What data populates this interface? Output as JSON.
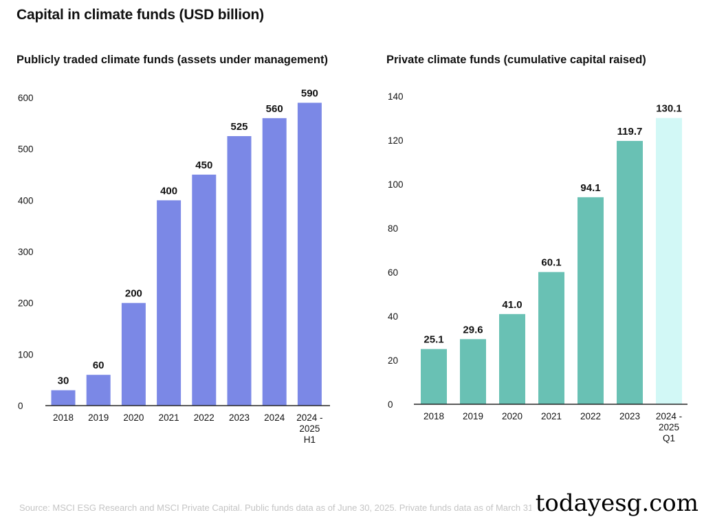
{
  "title": "Capital in climate funds (USD billion)",
  "source": "Source: MSCI ESG Research and MSCI Private Capital. Public funds data as of June 30, 2025. Private funds data as of March 31, 2025.",
  "watermark": "todayesg.com",
  "chart_data": [
    {
      "type": "bar",
      "title": "Publicly traded climate funds (assets under management)",
      "categories": [
        "2018",
        "2019",
        "2020",
        "2021",
        "2022",
        "2023",
        "2024",
        "2024 - 2025 H1"
      ],
      "category_lines": [
        [
          "2018"
        ],
        [
          "2019"
        ],
        [
          "2020"
        ],
        [
          "2021"
        ],
        [
          "2022"
        ],
        [
          "2023"
        ],
        [
          "2024"
        ],
        [
          "2024 -",
          "2025",
          "H1"
        ]
      ],
      "values": [
        30,
        60,
        200,
        400,
        450,
        525,
        560,
        590
      ],
      "value_labels": [
        "30",
        "60",
        "200",
        "400",
        "450",
        "525",
        "560",
        "590"
      ],
      "yticks": [
        0,
        100,
        200,
        300,
        400,
        500,
        600
      ],
      "ylim": [
        0,
        600
      ],
      "xlabel": "",
      "ylabel": "",
      "grid": false,
      "colors": [
        "#7b88e6",
        "#7b88e6",
        "#7b88e6",
        "#7b88e6",
        "#7b88e6",
        "#7b88e6",
        "#7b88e6",
        "#7b88e6"
      ]
    },
    {
      "type": "bar",
      "title": "Private climate funds (cumulative capital raised)",
      "categories": [
        "2018",
        "2019",
        "2020",
        "2021",
        "2022",
        "2023",
        "2024 - 2025 Q1"
      ],
      "category_lines": [
        [
          "2018"
        ],
        [
          "2019"
        ],
        [
          "2020"
        ],
        [
          "2021"
        ],
        [
          "2022"
        ],
        [
          "2023"
        ],
        [
          "2024 -",
          "2025",
          "Q1"
        ]
      ],
      "values": [
        25.1,
        29.6,
        41.0,
        60.1,
        94.1,
        119.7,
        130.1
      ],
      "value_labels": [
        "25.1",
        "29.6",
        "41.0",
        "60.1",
        "94.1",
        "119.7",
        "130.1"
      ],
      "yticks": [
        0,
        20,
        40,
        60,
        80,
        100,
        120,
        140
      ],
      "ylim": [
        0,
        140
      ],
      "xlabel": "",
      "ylabel": "",
      "grid": false,
      "colors": [
        "#69c1b4",
        "#69c1b4",
        "#69c1b4",
        "#69c1b4",
        "#69c1b4",
        "#69c1b4",
        "#d2f8f6"
      ]
    }
  ]
}
